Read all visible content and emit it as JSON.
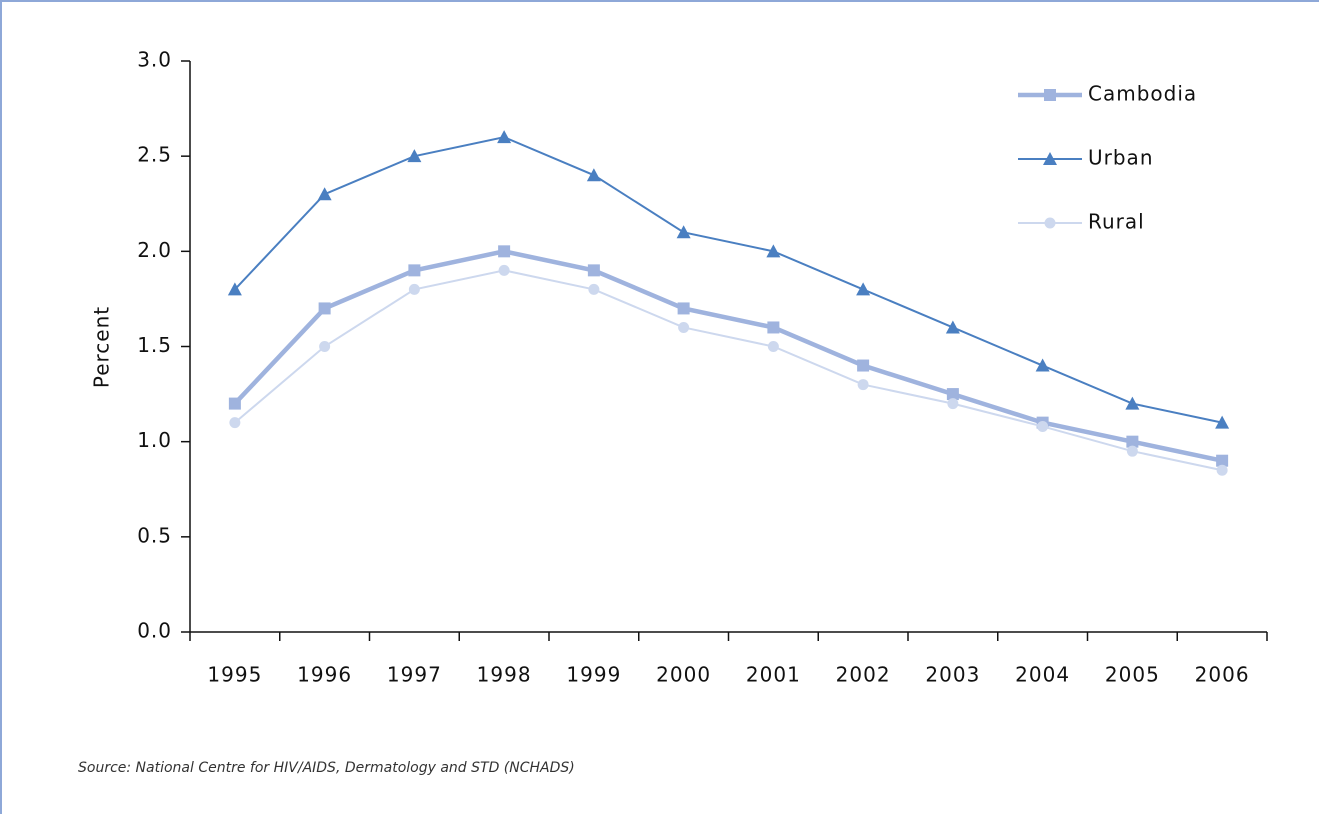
{
  "chart_data": {
    "type": "line",
    "y_label": "Percent",
    "source": "Source: National Centre for HIV/AIDS, Dermatology and STD (NCHADS)",
    "categories": [
      "1995",
      "1996",
      "1997",
      "1998",
      "1999",
      "2000",
      "2001",
      "2002",
      "2003",
      "2004",
      "2005",
      "2006"
    ],
    "series": [
      {
        "name": "Cambodia",
        "color": "#9fb3de",
        "marker": "square",
        "values": [
          1.2,
          1.7,
          1.9,
          2.0,
          1.9,
          1.7,
          1.6,
          1.4,
          1.25,
          1.1,
          1.0,
          0.9
        ]
      },
      {
        "name": "Urban",
        "color": "#4a7fc1",
        "marker": "triangle",
        "values": [
          1.8,
          2.3,
          2.5,
          2.6,
          2.4,
          2.1,
          2.0,
          1.8,
          1.6,
          1.4,
          1.2,
          1.1
        ]
      },
      {
        "name": "Rural",
        "color": "#cdd8ee",
        "marker": "circle",
        "values": [
          1.1,
          1.5,
          1.8,
          1.9,
          1.8,
          1.6,
          1.5,
          1.3,
          1.2,
          1.08,
          0.95,
          0.85
        ]
      }
    ],
    "ylim": [
      0,
      3
    ],
    "yticks": [
      {
        "value": 0,
        "label": "0.0"
      },
      {
        "value": 0.5,
        "label": "0.5"
      },
      {
        "value": 1,
        "label": "1.0"
      },
      {
        "value": 1.5,
        "label": "1.5"
      },
      {
        "value": 2,
        "label": "2.0"
      },
      {
        "value": 2.5,
        "label": "2.5"
      },
      {
        "value": 3,
        "label": "3.0"
      }
    ],
    "legend": "top-right"
  }
}
